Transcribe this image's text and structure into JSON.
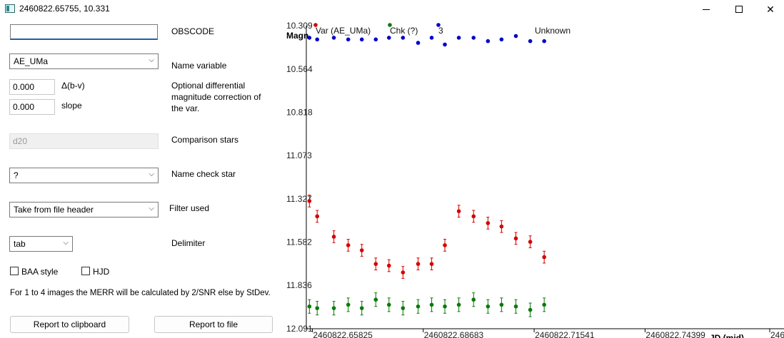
{
  "window": {
    "title": "2460822.65755, 10.331"
  },
  "form": {
    "obscode_value": "",
    "obscode_label": "OBSCODE",
    "variable_value": "AE_UMa",
    "variable_label": "Name variable",
    "dbv_value": "0.000",
    "dbv_label": "Δ(b-v)",
    "slope_value": "0.000",
    "slope_label": "slope",
    "correction_label_1": "Optional differential",
    "correction_label_2": "magnitude correction of",
    "correction_label_3": "the var.",
    "comparison_value": "d20",
    "comparison_label": "Comparison stars",
    "check_value": "?",
    "check_label": "Name check star",
    "filter_value": "Take from file header",
    "filter_label": "Filter used",
    "delimiter_value": "tab",
    "delimiter_label": "Delimiter",
    "baa_label": "BAA style",
    "hjd_label": "HJD",
    "merr_note": "For 1 to 4 images the MERR will be calculated by 2/SNR else by StDev.",
    "clipboard_button": "Report to clipboard",
    "file_button": "Report to file"
  },
  "colors": {
    "var": "#d40000",
    "chk": "#0a7a0a",
    "comp": "#0000c8",
    "accent": "#1f5fad"
  },
  "chart_data": {
    "type": "scatter",
    "ylabel": "Magn",
    "xlabel": "JD (mid)",
    "yticks": [
      "10.309",
      "10.564",
      "10.818",
      "11.073",
      "11.327",
      "11.582",
      "11.836",
      "12.091"
    ],
    "ylim": [
      10.309,
      12.091
    ],
    "y_inverted": true,
    "xticks": [
      "2460822.65825",
      "2460822.68683",
      "2460822.71541",
      "2460822.74399",
      "246"
    ],
    "xlim": [
      2460822.6567,
      2460822.7785
    ],
    "legend": [
      "Var (AE_UMa)",
      "Chk (?)",
      "3",
      "Unknown"
    ],
    "x": [
      2460822.6575,
      2460822.6595,
      2460822.6638,
      2460822.6675,
      2460822.671,
      2460822.6746,
      2460822.678,
      2460822.6816,
      2460822.6855,
      2460822.689,
      2460822.6924,
      2460822.696,
      2460822.6998,
      2460822.7035,
      2460822.707,
      2460822.7107,
      2460822.7144,
      2460822.718
    ],
    "series": [
      {
        "name": "Var (AE_UMa)",
        "color": "#d40000",
        "y": [
          11.34,
          11.43,
          11.55,
          11.6,
          11.63,
          11.71,
          11.72,
          11.76,
          11.71,
          11.71,
          11.6,
          11.4,
          11.43,
          11.47,
          11.49,
          11.56,
          11.58,
          11.67
        ],
        "err": 0.035
      },
      {
        "name": "Chk (?)",
        "color": "#0a7a0a",
        "y": [
          11.96,
          11.97,
          11.97,
          11.95,
          11.97,
          11.92,
          11.95,
          11.97,
          11.96,
          11.95,
          11.96,
          11.95,
          11.92,
          11.96,
          11.95,
          11.96,
          11.98,
          11.95
        ],
        "err": 0.04
      },
      {
        "name": "3",
        "color": "#0000c8",
        "y": [
          10.38,
          10.39,
          10.38,
          10.39,
          10.39,
          10.39,
          10.38,
          10.38,
          10.41,
          10.38,
          10.42,
          10.38,
          10.38,
          10.4,
          10.39,
          10.37,
          10.4,
          10.4
        ],
        "err": 0
      }
    ]
  }
}
